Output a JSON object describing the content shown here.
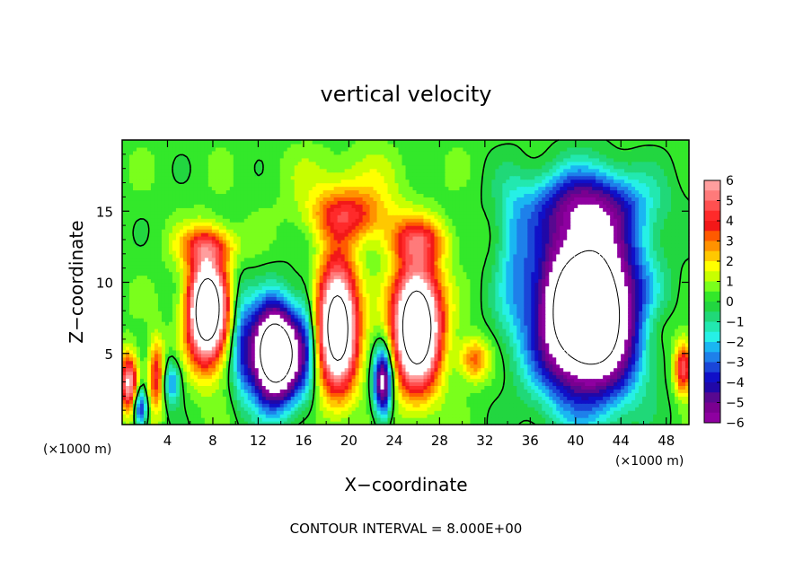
{
  "chart_data": {
    "type": "heatmap",
    "title": "vertical velocity",
    "xlabel": "X−coordinate",
    "ylabel": "Z−coordinate",
    "x_unit": "(×1000 m)",
    "x_unit_right": "(×1000 m)",
    "footer": "CONTOUR INTERVAL = 8.000E+00",
    "x_ticks": [
      4,
      8,
      12,
      16,
      20,
      24,
      28,
      32,
      36,
      40,
      44,
      48
    ],
    "y_ticks": [
      5,
      10,
      15
    ],
    "xlim": [
      0,
      50
    ],
    "ylim": [
      0,
      20
    ],
    "colorbar": {
      "min": -6,
      "max": 6,
      "labels": [
        "6",
        "5",
        "4",
        "3",
        "2",
        "1",
        "0",
        "−1",
        "−2",
        "−3",
        "−4",
        "−5",
        "−6"
      ],
      "colors": [
        "#ff9e9e",
        "#ff7a7a",
        "#ff5050",
        "#ff2a2a",
        "#f21818",
        "#ff5a00",
        "#ff9200",
        "#ffc800",
        "#ffff00",
        "#c8ff00",
        "#7aff1c",
        "#33e82a",
        "#22d640",
        "#20d878",
        "#22e8b0",
        "#26f0e6",
        "#1ab6f2",
        "#1e80ea",
        "#1a46d8",
        "#1010c8",
        "#2008a8",
        "#580890",
        "#7a0090",
        "#8e00a0"
      ]
    },
    "field": {
      "description_free": true,
      "background": 0.3,
      "cells": [
        {
          "x": 7.5,
          "z": 8,
          "sx": 1.7,
          "sz": 3.6,
          "amp": 11
        },
        {
          "x": 7.5,
          "z": 12.6,
          "sx": 2.6,
          "sz": 1.4,
          "amp": 3
        },
        {
          "x": 13.5,
          "z": 5,
          "sx": 2.3,
          "sz": 3.4,
          "amp": -12
        },
        {
          "x": 19,
          "z": 7,
          "sx": 1.8,
          "sz": 4.5,
          "amp": 10
        },
        {
          "x": 20,
          "z": 14.8,
          "sx": 3.6,
          "sz": 1.8,
          "amp": 3.5
        },
        {
          "x": 20,
          "z": 17.5,
          "sx": 5,
          "sz": 2,
          "amp": 0.9
        },
        {
          "x": 23,
          "z": 3,
          "sx": 0.8,
          "sz": 2.4,
          "amp": -7
        },
        {
          "x": 26,
          "z": 7,
          "sx": 2.1,
          "sz": 4.3,
          "amp": 11
        },
        {
          "x": 26,
          "z": 13,
          "sx": 2.8,
          "sz": 1.5,
          "amp": 3
        },
        {
          "x": 41,
          "z": 8,
          "sx": 4.5,
          "sz": 5.8,
          "amp": -13
        },
        {
          "x": 41,
          "z": 15.5,
          "sx": 5.5,
          "sz": 2.6,
          "amp": -4
        },
        {
          "x": 34.5,
          "z": 12,
          "sx": 1.6,
          "sz": 5,
          "amp": -1.6
        },
        {
          "x": 0.6,
          "z": 3,
          "sx": 0.8,
          "sz": 2,
          "amp": 6
        },
        {
          "x": 1.6,
          "z": 1.2,
          "sx": 0.6,
          "sz": 1.4,
          "amp": -4.5
        },
        {
          "x": 3,
          "z": 3.5,
          "sx": 0.7,
          "sz": 2.5,
          "amp": 4
        },
        {
          "x": 4.4,
          "z": 3,
          "sx": 0.8,
          "sz": 1.6,
          "amp": -3
        },
        {
          "x": 31,
          "z": 4.6,
          "sx": 1.3,
          "sz": 1.5,
          "amp": 3
        },
        {
          "x": 49.5,
          "z": 4,
          "sx": 0.8,
          "sz": 1.8,
          "amp": 5
        },
        {
          "x": 47,
          "z": 7,
          "sx": 2,
          "sz": 2,
          "amp": 1.2
        },
        {
          "x": 10.5,
          "z": 6,
          "sx": 0.9,
          "sz": 4,
          "amp": -2
        },
        {
          "x": 16.3,
          "z": 6,
          "sx": 0.9,
          "sz": 4,
          "amp": -1.8
        }
      ]
    }
  }
}
